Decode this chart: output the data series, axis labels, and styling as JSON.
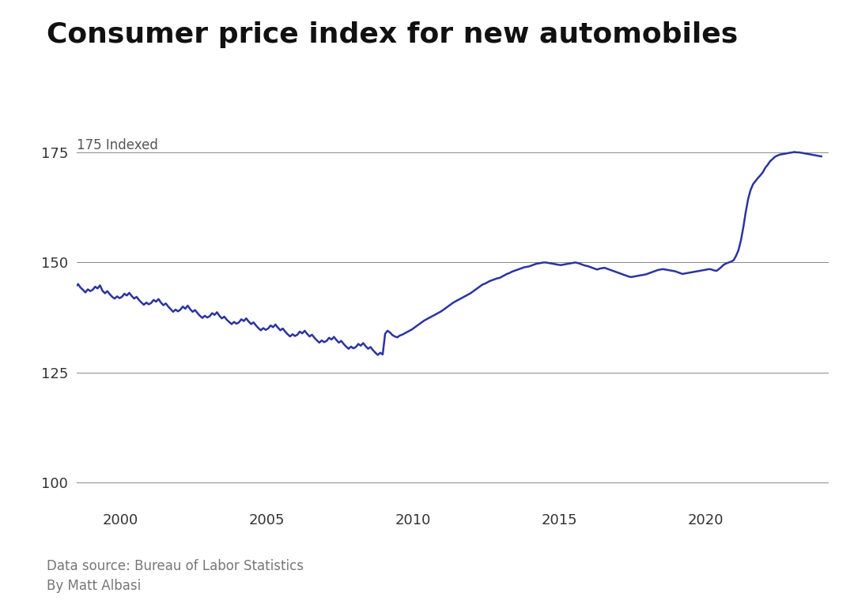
{
  "title": "Consumer price index for new automobiles",
  "title_fontsize": 26,
  "title_fontweight": "bold",
  "ylabel_text": "175 Indexed",
  "ylabel_fontsize": 12,
  "source_text": "Data source: Bureau of Labor Statistics\nBy Matt Albasi",
  "source_fontsize": 12,
  "line_color": "#2c34a0",
  "line_width": 1.8,
  "background_color": "#ffffff",
  "xlim": [
    1998.5,
    2024.2
  ],
  "ylim": [
    95,
    182
  ],
  "yticks": [
    100,
    125,
    150,
    175
  ],
  "xticks": [
    2000,
    2005,
    2010,
    2015,
    2020
  ],
  "grid_color": "#888888",
  "grid_linewidth": 0.7,
  "data": {
    "1998-01": 144.9,
    "1998-02": 145.6,
    "1998-03": 145.2,
    "1998-04": 145.8,
    "1998-05": 145.0,
    "1998-06": 144.5,
    "1998-07": 145.1,
    "1998-08": 144.3,
    "1998-09": 143.8,
    "1998-10": 143.2,
    "1998-11": 143.9,
    "1998-12": 143.5,
    "1999-01": 143.8,
    "1999-02": 144.5,
    "1999-03": 144.1,
    "1999-04": 144.8,
    "1999-05": 143.6,
    "1999-06": 143.0,
    "1999-07": 143.5,
    "1999-08": 142.8,
    "1999-09": 142.2,
    "1999-10": 141.8,
    "1999-11": 142.3,
    "1999-12": 141.9,
    "2000-01": 142.2,
    "2000-02": 142.9,
    "2000-03": 142.5,
    "2000-04": 143.1,
    "2000-05": 142.4,
    "2000-06": 141.8,
    "2000-07": 142.2,
    "2000-08": 141.5,
    "2000-09": 140.9,
    "2000-10": 140.4,
    "2000-11": 140.9,
    "2000-12": 140.5,
    "2001-01": 140.8,
    "2001-02": 141.5,
    "2001-03": 141.1,
    "2001-04": 141.7,
    "2001-05": 140.9,
    "2001-06": 140.3,
    "2001-07": 140.7,
    "2001-08": 140.0,
    "2001-09": 139.4,
    "2001-10": 138.8,
    "2001-11": 139.3,
    "2001-12": 138.9,
    "2002-01": 139.3,
    "2002-02": 140.0,
    "2002-03": 139.5,
    "2002-04": 140.2,
    "2002-05": 139.4,
    "2002-06": 138.8,
    "2002-07": 139.2,
    "2002-08": 138.5,
    "2002-09": 137.9,
    "2002-10": 137.4,
    "2002-11": 137.9,
    "2002-12": 137.5,
    "2003-01": 137.8,
    "2003-02": 138.5,
    "2003-03": 138.1,
    "2003-04": 138.7,
    "2003-05": 137.9,
    "2003-06": 137.3,
    "2003-07": 137.7,
    "2003-08": 137.0,
    "2003-09": 136.5,
    "2003-10": 136.0,
    "2003-11": 136.5,
    "2003-12": 136.1,
    "2004-01": 136.4,
    "2004-02": 137.1,
    "2004-03": 136.7,
    "2004-04": 137.3,
    "2004-05": 136.6,
    "2004-06": 136.0,
    "2004-07": 136.4,
    "2004-08": 135.7,
    "2004-09": 135.1,
    "2004-10": 134.6,
    "2004-11": 135.1,
    "2004-12": 134.7,
    "2005-01": 135.0,
    "2005-02": 135.7,
    "2005-03": 135.3,
    "2005-04": 135.9,
    "2005-05": 135.2,
    "2005-06": 134.6,
    "2005-07": 135.0,
    "2005-08": 134.3,
    "2005-09": 133.7,
    "2005-10": 133.2,
    "2005-11": 133.7,
    "2005-12": 133.3,
    "2006-01": 133.6,
    "2006-02": 134.3,
    "2006-03": 133.9,
    "2006-04": 134.5,
    "2006-05": 133.8,
    "2006-06": 133.2,
    "2006-07": 133.6,
    "2006-08": 132.9,
    "2006-09": 132.3,
    "2006-10": 131.8,
    "2006-11": 132.3,
    "2006-12": 131.9,
    "2007-01": 132.2,
    "2007-02": 132.9,
    "2007-03": 132.5,
    "2007-04": 133.1,
    "2007-05": 132.4,
    "2007-06": 131.8,
    "2007-07": 132.2,
    "2007-08": 131.5,
    "2007-09": 130.9,
    "2007-10": 130.4,
    "2007-11": 130.9,
    "2007-12": 130.5,
    "2008-01": 130.8,
    "2008-02": 131.5,
    "2008-03": 131.1,
    "2008-04": 131.7,
    "2008-05": 131.0,
    "2008-06": 130.4,
    "2008-07": 130.8,
    "2008-08": 130.1,
    "2008-09": 129.5,
    "2008-10": 129.0,
    "2008-11": 129.5,
    "2008-12": 129.1,
    "2009-01": 133.8,
    "2009-02": 134.5,
    "2009-03": 134.1,
    "2009-04": 133.5,
    "2009-05": 133.2,
    "2009-06": 133.0,
    "2009-07": 133.4,
    "2009-08": 133.6,
    "2009-09": 133.9,
    "2009-10": 134.2,
    "2009-11": 134.5,
    "2009-12": 134.8,
    "2010-01": 135.2,
    "2010-02": 135.6,
    "2010-03": 136.0,
    "2010-04": 136.4,
    "2010-05": 136.8,
    "2010-06": 137.1,
    "2010-07": 137.4,
    "2010-08": 137.7,
    "2010-09": 138.0,
    "2010-10": 138.3,
    "2010-11": 138.6,
    "2010-12": 138.9,
    "2011-01": 139.3,
    "2011-02": 139.7,
    "2011-03": 140.1,
    "2011-04": 140.5,
    "2011-05": 140.9,
    "2011-06": 141.2,
    "2011-07": 141.5,
    "2011-08": 141.8,
    "2011-09": 142.1,
    "2011-10": 142.4,
    "2011-11": 142.7,
    "2011-12": 143.0,
    "2012-01": 143.4,
    "2012-02": 143.8,
    "2012-03": 144.2,
    "2012-04": 144.6,
    "2012-05": 145.0,
    "2012-06": 145.2,
    "2012-07": 145.5,
    "2012-08": 145.8,
    "2012-09": 146.0,
    "2012-10": 146.2,
    "2012-11": 146.4,
    "2012-12": 146.5,
    "2013-01": 146.8,
    "2013-02": 147.1,
    "2013-03": 147.4,
    "2013-04": 147.6,
    "2013-05": 147.9,
    "2013-06": 148.1,
    "2013-07": 148.3,
    "2013-08": 148.5,
    "2013-09": 148.7,
    "2013-10": 148.9,
    "2013-11": 149.0,
    "2013-12": 149.1,
    "2014-01": 149.3,
    "2014-02": 149.5,
    "2014-03": 149.7,
    "2014-04": 149.8,
    "2014-05": 149.9,
    "2014-06": 150.0,
    "2014-07": 150.0,
    "2014-08": 149.9,
    "2014-09": 149.8,
    "2014-10": 149.7,
    "2014-11": 149.6,
    "2014-12": 149.5,
    "2015-01": 149.4,
    "2015-02": 149.5,
    "2015-03": 149.6,
    "2015-04": 149.7,
    "2015-05": 149.8,
    "2015-06": 149.9,
    "2015-07": 150.0,
    "2015-08": 149.9,
    "2015-09": 149.7,
    "2015-10": 149.5,
    "2015-11": 149.3,
    "2015-12": 149.2,
    "2016-01": 149.0,
    "2016-02": 148.8,
    "2016-03": 148.6,
    "2016-04": 148.4,
    "2016-05": 148.6,
    "2016-06": 148.7,
    "2016-07": 148.8,
    "2016-08": 148.6,
    "2016-09": 148.4,
    "2016-10": 148.2,
    "2016-11": 148.0,
    "2016-12": 147.8,
    "2017-01": 147.6,
    "2017-02": 147.4,
    "2017-03": 147.2,
    "2017-04": 147.0,
    "2017-05": 146.8,
    "2017-06": 146.7,
    "2017-07": 146.8,
    "2017-08": 146.9,
    "2017-09": 147.0,
    "2017-10": 147.1,
    "2017-11": 147.2,
    "2017-12": 147.3,
    "2018-01": 147.5,
    "2018-02": 147.7,
    "2018-03": 147.9,
    "2018-04": 148.1,
    "2018-05": 148.3,
    "2018-06": 148.4,
    "2018-07": 148.5,
    "2018-08": 148.4,
    "2018-09": 148.3,
    "2018-10": 148.2,
    "2018-11": 148.1,
    "2018-12": 148.0,
    "2019-01": 147.8,
    "2019-02": 147.6,
    "2019-03": 147.4,
    "2019-04": 147.5,
    "2019-05": 147.6,
    "2019-06": 147.7,
    "2019-07": 147.8,
    "2019-08": 147.9,
    "2019-09": 148.0,
    "2019-10": 148.1,
    "2019-11": 148.2,
    "2019-12": 148.3,
    "2020-01": 148.4,
    "2020-02": 148.5,
    "2020-03": 148.4,
    "2020-04": 148.2,
    "2020-05": 148.1,
    "2020-06": 148.5,
    "2020-07": 149.0,
    "2020-08": 149.5,
    "2020-09": 149.8,
    "2020-10": 150.0,
    "2020-11": 150.2,
    "2020-12": 150.5,
    "2021-01": 151.5,
    "2021-02": 152.8,
    "2021-03": 155.0,
    "2021-04": 158.0,
    "2021-05": 161.5,
    "2021-06": 164.5,
    "2021-07": 166.5,
    "2021-08": 167.8,
    "2021-09": 168.5,
    "2021-10": 169.2,
    "2021-11": 169.8,
    "2021-12": 170.5,
    "2022-01": 171.5,
    "2022-02": 172.2,
    "2022-03": 173.0,
    "2022-04": 173.5,
    "2022-05": 174.0,
    "2022-06": 174.3,
    "2022-07": 174.5,
    "2022-08": 174.6,
    "2022-09": 174.7,
    "2022-10": 174.8,
    "2022-11": 174.9,
    "2022-12": 175.0,
    "2023-01": 175.1,
    "2023-02": 175.0,
    "2023-03": 175.0,
    "2023-04": 174.9,
    "2023-05": 174.8,
    "2023-06": 174.7,
    "2023-07": 174.6,
    "2023-08": 174.5,
    "2023-09": 174.4,
    "2023-10": 174.3,
    "2023-11": 174.2,
    "2023-12": 174.1
  }
}
